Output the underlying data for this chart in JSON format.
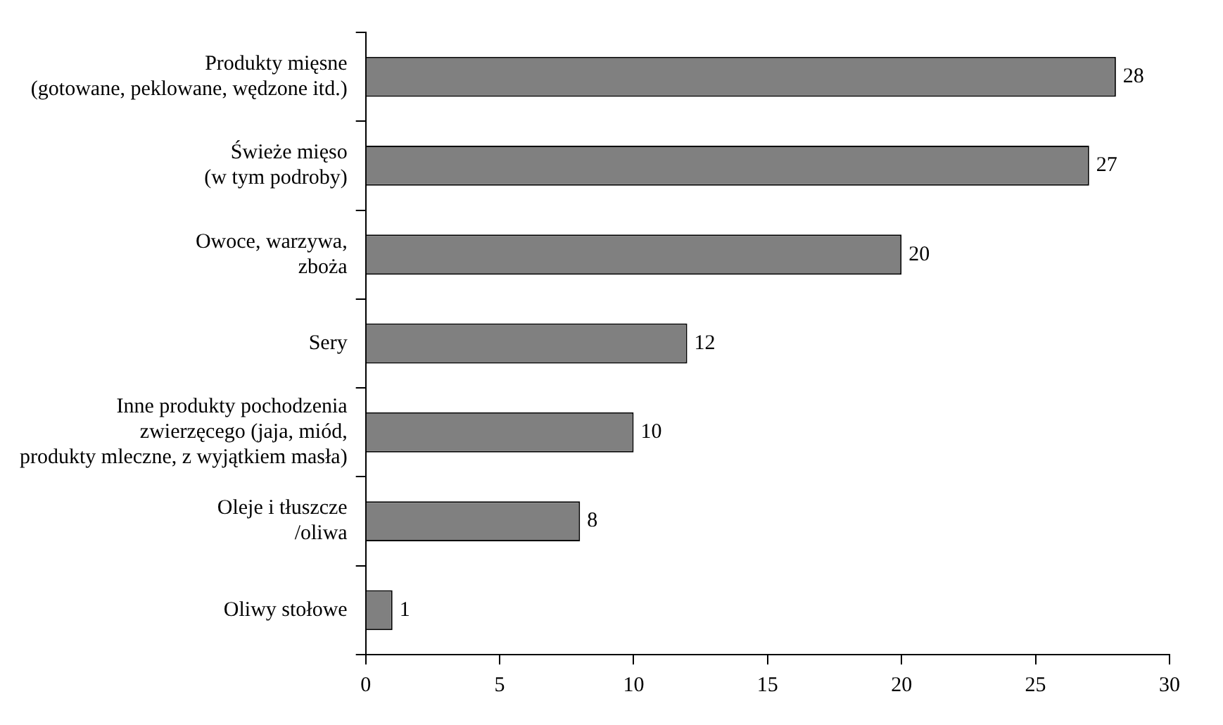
{
  "chart_data": {
    "type": "bar",
    "orientation": "horizontal",
    "categories": [
      "Produkty mięsne\n(gotowane, peklowane, wędzone itd.)",
      "Świeże mięso\n(w tym podroby)",
      "Owoce, warzywa,\nzboża",
      "Sery",
      "Inne produkty pochodzenia\nzwierzęcego (jaja, miód,\nprodukty mleczne, z wyjątkiem masła)",
      "Oleje i tłuszcze\n/oliwa",
      "Oliwy stołowe"
    ],
    "values": [
      28,
      27,
      20,
      12,
      10,
      8,
      1
    ],
    "color": "#808080",
    "xlim": [
      0,
      30
    ],
    "xticks": [
      0,
      5,
      10,
      15,
      20,
      25,
      30
    ],
    "data_labels": true,
    "grid": false,
    "legend": false
  }
}
